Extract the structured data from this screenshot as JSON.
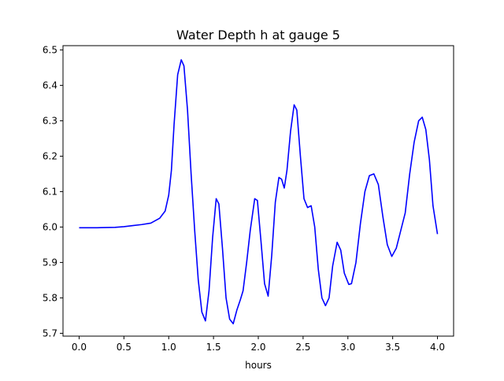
{
  "chart_data": {
    "type": "line",
    "title": "Water Depth h at gauge 5",
    "xlabel": "hours",
    "ylabel": "",
    "xlim": [
      -0.18,
      4.18
    ],
    "ylim": [
      5.692,
      6.512
    ],
    "xticks": [
      0.0,
      0.5,
      1.0,
      1.5,
      2.0,
      2.5,
      3.0,
      3.5,
      4.0
    ],
    "xtick_labels": [
      "0.0",
      "0.5",
      "1.0",
      "1.5",
      "2.0",
      "2.5",
      "3.0",
      "3.5",
      "4.0"
    ],
    "yticks": [
      5.7,
      5.8,
      5.9,
      6.0,
      6.1,
      6.2,
      6.3,
      6.4,
      6.5
    ],
    "ytick_labels": [
      "5.7",
      "5.8",
      "5.9",
      "6.0",
      "6.1",
      "6.2",
      "6.3",
      "6.4",
      "6.5"
    ],
    "grid": false,
    "legend": "none",
    "series": [
      {
        "color": "#0000ff",
        "points": [
          [
            0.0,
            5.998
          ],
          [
            0.2,
            5.998
          ],
          [
            0.4,
            5.999
          ],
          [
            0.5,
            6.001
          ],
          [
            0.6,
            6.004
          ],
          [
            0.7,
            6.007
          ],
          [
            0.8,
            6.011
          ],
          [
            0.9,
            6.025
          ],
          [
            0.96,
            6.045
          ],
          [
            1.0,
            6.09
          ],
          [
            1.03,
            6.16
          ],
          [
            1.06,
            6.29
          ],
          [
            1.1,
            6.43
          ],
          [
            1.14,
            6.472
          ],
          [
            1.17,
            6.455
          ],
          [
            1.21,
            6.33
          ],
          [
            1.25,
            6.15
          ],
          [
            1.29,
            5.99
          ],
          [
            1.33,
            5.85
          ],
          [
            1.37,
            5.76
          ],
          [
            1.41,
            5.735
          ],
          [
            1.45,
            5.82
          ],
          [
            1.49,
            5.97
          ],
          [
            1.53,
            6.08
          ],
          [
            1.56,
            6.065
          ],
          [
            1.6,
            5.94
          ],
          [
            1.64,
            5.8
          ],
          [
            1.68,
            5.74
          ],
          [
            1.72,
            5.727
          ],
          [
            1.76,
            5.765
          ],
          [
            1.8,
            5.795
          ],
          [
            1.83,
            5.82
          ],
          [
            1.87,
            5.9
          ],
          [
            1.91,
            5.99
          ],
          [
            1.96,
            6.08
          ],
          [
            1.99,
            6.075
          ],
          [
            2.03,
            5.96
          ],
          [
            2.07,
            5.84
          ],
          [
            2.11,
            5.805
          ],
          [
            2.15,
            5.92
          ],
          [
            2.19,
            6.07
          ],
          [
            2.23,
            6.14
          ],
          [
            2.26,
            6.135
          ],
          [
            2.29,
            6.11
          ],
          [
            2.32,
            6.16
          ],
          [
            2.36,
            6.27
          ],
          [
            2.4,
            6.345
          ],
          [
            2.43,
            6.33
          ],
          [
            2.47,
            6.2
          ],
          [
            2.51,
            6.08
          ],
          [
            2.55,
            6.055
          ],
          [
            2.59,
            6.06
          ],
          [
            2.63,
            6.0
          ],
          [
            2.67,
            5.88
          ],
          [
            2.71,
            5.8
          ],
          [
            2.75,
            5.778
          ],
          [
            2.79,
            5.8
          ],
          [
            2.83,
            5.89
          ],
          [
            2.88,
            5.957
          ],
          [
            2.92,
            5.935
          ],
          [
            2.96,
            5.87
          ],
          [
            3.01,
            5.838
          ],
          [
            3.04,
            5.84
          ],
          [
            3.09,
            5.9
          ],
          [
            3.14,
            6.01
          ],
          [
            3.19,
            6.1
          ],
          [
            3.24,
            6.145
          ],
          [
            3.29,
            6.15
          ],
          [
            3.34,
            6.12
          ],
          [
            3.39,
            6.03
          ],
          [
            3.44,
            5.95
          ],
          [
            3.49,
            5.917
          ],
          [
            3.54,
            5.94
          ],
          [
            3.59,
            5.99
          ],
          [
            3.64,
            6.04
          ],
          [
            3.69,
            6.15
          ],
          [
            3.74,
            6.24
          ],
          [
            3.79,
            6.3
          ],
          [
            3.83,
            6.31
          ],
          [
            3.87,
            6.275
          ],
          [
            3.91,
            6.19
          ],
          [
            3.95,
            6.06
          ],
          [
            4.0,
            5.98
          ]
        ]
      }
    ]
  }
}
